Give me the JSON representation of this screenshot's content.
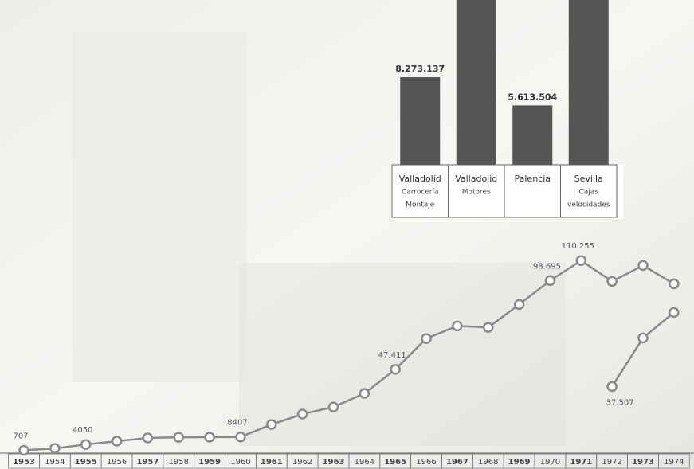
{
  "chart_data": [
    {
      "type": "bar",
      "categories": [
        [
          "Valladolid",
          "Carrocería",
          "Montaje"
        ],
        [
          "Valladolid",
          "Motores"
        ],
        [
          "Palencia"
        ],
        [
          "Sevilla",
          "Cajas",
          "velocidades"
        ]
      ],
      "values": [
        8273137,
        16000000,
        5613504,
        16000000
      ],
      "value_labels": [
        "8.273.137",
        null,
        "5.613.504",
        null
      ],
      "color": "#555555",
      "ylim": [
        0,
        17000000
      ]
    },
    {
      "type": "line",
      "categories": [
        "1953",
        "1954",
        "1955",
        "1956",
        "1957",
        "1958",
        "1959",
        "1960",
        "1961",
        "1962",
        "1963",
        "1964",
        "1965",
        "1966",
        "1967",
        "1968",
        "1969",
        "1970",
        "1971",
        "1972",
        "1973",
        "1974"
      ],
      "series": [
        {
          "color": "#8a8a8a",
          "values": [
            707,
            1800,
            4050,
            6000,
            7800,
            8200,
            8300,
            8407,
            15600,
            21600,
            25700,
            33500,
            47411,
            65200,
            72500,
            71600,
            84900,
            98695,
            110255,
            98200,
            107400,
            96800
          ],
          "value_labels": [
            "707",
            null,
            "4050",
            null,
            null,
            null,
            null,
            "8407",
            null,
            null,
            null,
            null,
            "47.411",
            null,
            null,
            null,
            null,
            "98.695",
            "110.255",
            null,
            null,
            null
          ]
        },
        {
          "color": "#8a8a8a",
          "values": [
            null,
            null,
            null,
            null,
            null,
            null,
            null,
            null,
            null,
            null,
            null,
            null,
            null,
            null,
            null,
            null,
            null,
            null,
            null,
            37507,
            65600,
            80300
          ],
          "value_labels": [
            null,
            null,
            null,
            null,
            null,
            null,
            null,
            null,
            null,
            null,
            null,
            null,
            null,
            null,
            null,
            null,
            null,
            null,
            null,
            "37.507",
            null,
            null
          ]
        }
      ],
      "ylim": [
        0,
        120000
      ]
    }
  ]
}
